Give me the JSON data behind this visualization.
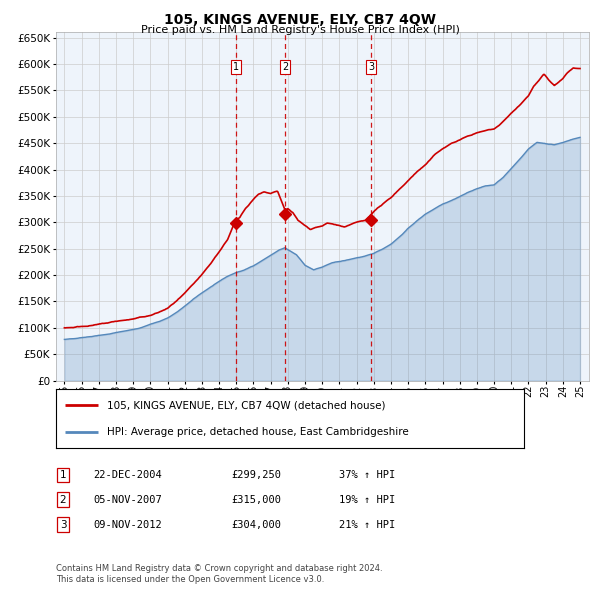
{
  "title": "105, KINGS AVENUE, ELY, CB7 4QW",
  "subtitle": "Price paid vs. HM Land Registry's House Price Index (HPI)",
  "footer1": "Contains HM Land Registry data © Crown copyright and database right 2024.",
  "footer2": "This data is licensed under the Open Government Licence v3.0.",
  "legend_line1": "105, KINGS AVENUE, ELY, CB7 4QW (detached house)",
  "legend_line2": "HPI: Average price, detached house, East Cambridgeshire",
  "transactions": [
    {
      "num": 1,
      "date": "22-DEC-2004",
      "price": "£299,250",
      "change": "37% ↑ HPI",
      "year": 2004.97
    },
    {
      "num": 2,
      "date": "05-NOV-2007",
      "price": "£315,000",
      "change": "19% ↑ HPI",
      "year": 2007.84
    },
    {
      "num": 3,
      "date": "09-NOV-2012",
      "price": "£304,000",
      "change": "21% ↑ HPI",
      "year": 2012.86
    }
  ],
  "transaction_values": [
    299250,
    315000,
    304000
  ],
  "red_color": "#cc0000",
  "blue_color": "#5588bb",
  "fill_color": "#ddeeff",
  "grid_color": "#cccccc",
  "bg_color": "#ffffff",
  "plot_bg": "#eef4fb",
  "vline_color": "#cc0000",
  "ylim": [
    0,
    660000
  ],
  "yticks": [
    0,
    50000,
    100000,
    150000,
    200000,
    250000,
    300000,
    350000,
    400000,
    450000,
    500000,
    550000,
    600000,
    650000
  ],
  "xstart": 1994.5,
  "xend": 2025.5,
  "xtick_years": [
    1995,
    1996,
    1997,
    1998,
    1999,
    2000,
    2001,
    2002,
    2003,
    2004,
    2005,
    2006,
    2007,
    2008,
    2009,
    2010,
    2011,
    2012,
    2013,
    2014,
    2015,
    2016,
    2017,
    2018,
    2019,
    2020,
    2021,
    2022,
    2023,
    2024,
    2025
  ]
}
